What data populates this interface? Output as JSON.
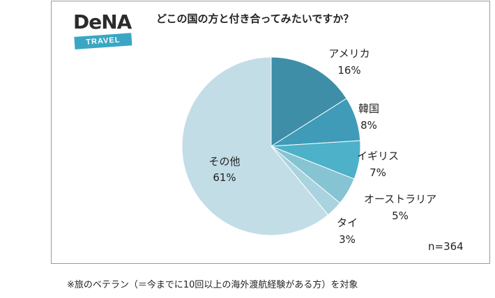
{
  "logo": {
    "text": "DeNA",
    "badge": "TRAVEL"
  },
  "n_label": "n=364",
  "footnote": "※旅のベテラン（＝今までに10回以上の海外渡航経験がある方）を対象",
  "chart_data": {
    "type": "pie",
    "title": "どこの国の方と付き合ってみたいですか？",
    "start_angle_deg": 0,
    "direction": "clockwise",
    "slices": [
      {
        "label": "アメリカ",
        "value": 16,
        "value_label": "16%",
        "color": "#3e8ea8"
      },
      {
        "label": "韓国",
        "value": 8,
        "value_label": "8%",
        "color": "#3f9bb8"
      },
      {
        "label": "イギリス",
        "value": 7,
        "value_label": "7%",
        "color": "#4cb1c9"
      },
      {
        "label": "オーストラリア",
        "value": 5,
        "value_label": "5%",
        "color": "#86c3d3"
      },
      {
        "label": "タイ",
        "value": 3,
        "value_label": "3%",
        "color": "#a9d3de"
      },
      {
        "label": "その他",
        "value": 61,
        "value_label": "61%",
        "color": "#c3dde7"
      }
    ]
  }
}
